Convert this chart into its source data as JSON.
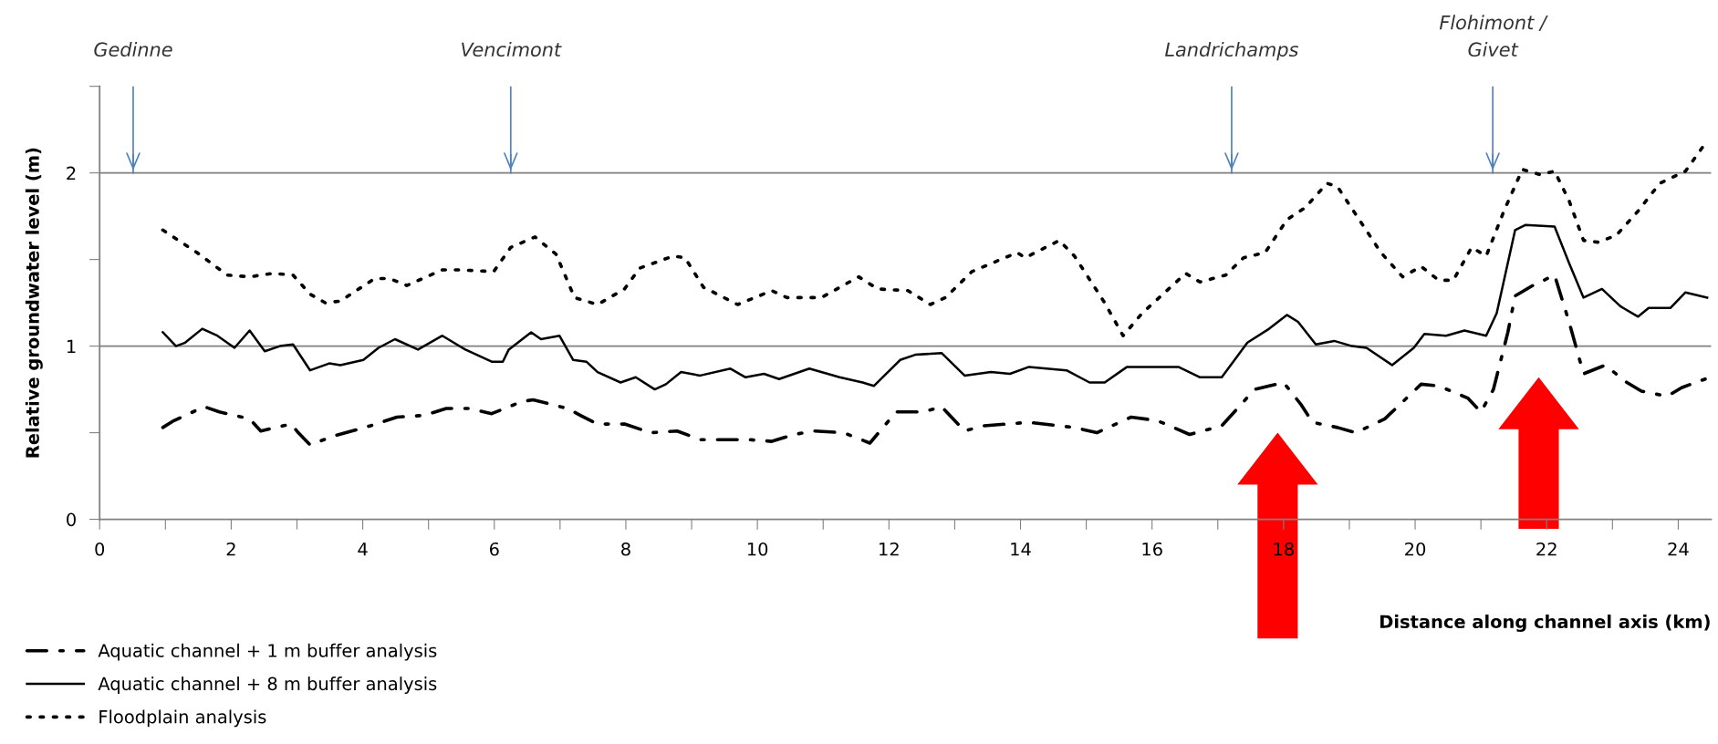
{
  "chart_data": {
    "type": "line",
    "xlabel": "Distance along channel axis (km)",
    "ylabel": "Relative groundwater level (m)",
    "xlim": [
      0,
      24.5
    ],
    "ylim": [
      0,
      2.5
    ],
    "xticks": [
      0,
      {
        "value": 1,
        "label": null
      },
      2,
      {
        "value": 3,
        "label": null
      },
      4,
      {
        "value": 5,
        "label": null
      },
      6,
      {
        "value": 7,
        "label": null
      },
      8,
      {
        "value": 9,
        "label": null
      },
      10,
      {
        "value": 11,
        "label": null
      },
      12,
      {
        "value": 13,
        "label": null
      },
      14,
      {
        "value": 15,
        "label": null
      },
      16,
      {
        "value": 17,
        "label": null
      },
      18,
      {
        "value": 19,
        "label": null
      },
      20,
      {
        "value": 21,
        "label": null
      },
      22,
      {
        "value": 23,
        "label": null
      },
      24
    ],
    "yticks": [
      0,
      {
        "value": 0.5,
        "label": null
      },
      1,
      {
        "value": 1.5,
        "label": null
      },
      2,
      {
        "value": 2.5,
        "label": null
      }
    ],
    "grid": "y",
    "legend": "bottom left",
    "series": [
      {
        "name": "Aquatic channel + 1 m buffer analysis",
        "color": "#000000",
        "line_style": "dashdot",
        "x": [
          0.96,
          1.13,
          1.59,
          1.82,
          2.28,
          2.45,
          2.91,
          3.02,
          3.2,
          3.55,
          4.12,
          4.52,
          4.93,
          5.27,
          5.61,
          5.96,
          6.42,
          6.59,
          7.11,
          7.31,
          7.57,
          7.98,
          8.38,
          8.78,
          9.13,
          9.87,
          10.22,
          10.56,
          10.85,
          11.31,
          11.71,
          12.11,
          12.52,
          12.8,
          13.15,
          13.44,
          14.13,
          14.82,
          15.16,
          15.68,
          16.08,
          16.57,
          17.06,
          17.56,
          18.0,
          18.27,
          18.44,
          18.82,
          19.1,
          19.54,
          20.09,
          20.36,
          20.8,
          21.0,
          21.19,
          21.41,
          21.52,
          21.79,
          22.12,
          22.34,
          22.56,
          22.89,
          23.22,
          23.44,
          23.83,
          24.05,
          24.41
        ],
        "values": [
          0.53,
          0.57,
          0.65,
          0.62,
          0.58,
          0.51,
          0.55,
          0.5,
          0.43,
          0.48,
          0.54,
          0.59,
          0.6,
          0.64,
          0.64,
          0.61,
          0.68,
          0.69,
          0.64,
          0.6,
          0.55,
          0.55,
          0.5,
          0.51,
          0.46,
          0.46,
          0.45,
          0.49,
          0.51,
          0.5,
          0.44,
          0.62,
          0.62,
          0.65,
          0.51,
          0.54,
          0.56,
          0.53,
          0.5,
          0.59,
          0.57,
          0.49,
          0.54,
          0.75,
          0.79,
          0.66,
          0.56,
          0.53,
          0.5,
          0.58,
          0.78,
          0.77,
          0.7,
          0.62,
          0.75,
          1.08,
          1.29,
          1.35,
          1.41,
          1.14,
          0.84,
          0.89,
          0.79,
          0.74,
          0.71,
          0.76,
          0.81
        ]
      },
      {
        "name": "Aquatic channel + 8 m buffer analysis",
        "color": "#000000",
        "line_style": "solid",
        "x": [
          0.96,
          1.16,
          1.3,
          1.56,
          1.79,
          2.05,
          2.28,
          2.51,
          2.74,
          2.94,
          3.2,
          3.49,
          3.66,
          4.01,
          4.24,
          4.49,
          4.84,
          5.21,
          5.56,
          5.96,
          6.13,
          6.22,
          6.56,
          6.71,
          6.99,
          7.2,
          7.4,
          7.57,
          7.92,
          8.15,
          8.44,
          8.61,
          8.84,
          9.13,
          9.59,
          9.82,
          10.1,
          10.33,
          10.79,
          11.25,
          11.6,
          11.77,
          12.17,
          12.4,
          12.8,
          13.15,
          13.55,
          13.84,
          14.13,
          14.7,
          15.05,
          15.28,
          15.62,
          15.97,
          16.4,
          16.73,
          17.06,
          17.45,
          17.78,
          18.05,
          18.22,
          18.49,
          18.77,
          19.04,
          19.26,
          19.65,
          19.98,
          20.14,
          20.47,
          20.75,
          21.08,
          21.24,
          21.52,
          21.68,
          22.12,
          22.34,
          22.56,
          22.84,
          23.12,
          23.39,
          23.55,
          23.88,
          24.11,
          24.44
        ],
        "values": [
          1.08,
          1.0,
          1.02,
          1.1,
          1.06,
          0.99,
          1.09,
          0.97,
          1.0,
          1.01,
          0.86,
          0.9,
          0.89,
          0.92,
          0.99,
          1.04,
          0.98,
          1.06,
          0.98,
          0.91,
          0.91,
          0.98,
          1.08,
          1.04,
          1.06,
          0.92,
          0.91,
          0.85,
          0.79,
          0.82,
          0.75,
          0.78,
          0.85,
          0.83,
          0.87,
          0.82,
          0.84,
          0.81,
          0.87,
          0.82,
          0.79,
          0.77,
          0.92,
          0.95,
          0.96,
          0.83,
          0.85,
          0.84,
          0.88,
          0.86,
          0.79,
          0.79,
          0.88,
          0.88,
          0.88,
          0.82,
          0.82,
          1.02,
          1.1,
          1.18,
          1.14,
          1.01,
          1.03,
          1.0,
          0.99,
          0.89,
          0.99,
          1.07,
          1.06,
          1.09,
          1.06,
          1.19,
          1.67,
          1.7,
          1.69,
          1.48,
          1.28,
          1.33,
          1.23,
          1.17,
          1.22,
          1.22,
          1.31,
          1.28
        ]
      },
      {
        "name": "Floodplain analysis",
        "color": "#000000",
        "line_style": "dotted",
        "x": [
          0.96,
          1.48,
          1.94,
          2.28,
          2.63,
          2.94,
          3.2,
          3.43,
          3.66,
          4.18,
          4.41,
          4.67,
          5.21,
          5.5,
          5.99,
          6.25,
          6.62,
          6.94,
          7.22,
          7.57,
          7.98,
          8.21,
          8.72,
          8.9,
          9.18,
          9.7,
          10.22,
          10.45,
          10.97,
          11.54,
          11.83,
          12.29,
          12.63,
          12.86,
          13.26,
          13.95,
          14.07,
          14.59,
          14.82,
          15.28,
          15.56,
          15.85,
          16.51,
          16.73,
          17.12,
          17.39,
          17.72,
          18.05,
          18.33,
          18.66,
          18.82,
          19.15,
          19.48,
          19.81,
          20.09,
          20.36,
          20.58,
          20.86,
          21.08,
          21.35,
          21.63,
          21.9,
          22.12,
          22.34,
          22.56,
          22.78,
          23.06,
          23.39,
          23.72,
          24.11,
          24.41
        ],
        "values": [
          1.67,
          1.54,
          1.41,
          1.4,
          1.42,
          1.41,
          1.3,
          1.25,
          1.26,
          1.39,
          1.39,
          1.35,
          1.44,
          1.44,
          1.43,
          1.57,
          1.63,
          1.53,
          1.28,
          1.24,
          1.33,
          1.45,
          1.52,
          1.51,
          1.34,
          1.24,
          1.32,
          1.28,
          1.28,
          1.4,
          1.33,
          1.32,
          1.24,
          1.28,
          1.43,
          1.54,
          1.51,
          1.61,
          1.52,
          1.25,
          1.06,
          1.19,
          1.42,
          1.37,
          1.41,
          1.51,
          1.54,
          1.73,
          1.8,
          1.94,
          1.92,
          1.73,
          1.54,
          1.4,
          1.46,
          1.38,
          1.38,
          1.57,
          1.52,
          1.78,
          2.02,
          1.99,
          2.01,
          1.84,
          1.61,
          1.6,
          1.64,
          1.78,
          1.94,
          2.01,
          2.17
        ]
      }
    ],
    "ref_lines": [
      {
        "axis": "x",
        "value": 0.51,
        "label": "Gedinne",
        "color": "#4f81bd"
      },
      {
        "axis": "x",
        "value": 6.25,
        "label": "Vencimont",
        "color": "#4f81bd"
      },
      {
        "axis": "x",
        "value": 17.21,
        "label": "Landrichamps",
        "color": "#4f81bd"
      },
      {
        "axis": "x",
        "value": 21.18,
        "label": "Flohimont /\nGivet",
        "color": "#4f81bd"
      }
    ]
  }
}
